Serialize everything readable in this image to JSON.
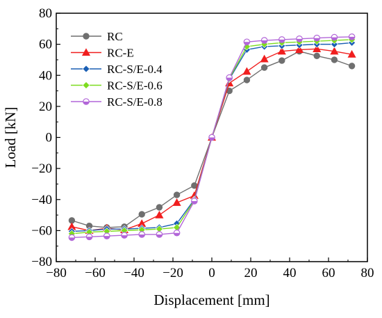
{
  "chart_data": {
    "type": "line",
    "xlabel": "Displacement [mm]",
    "ylabel": "Load [kN]",
    "xlim": [
      -80,
      80
    ],
    "ylim": [
      -80,
      80
    ],
    "xticks": [
      -80,
      -60,
      -40,
      -20,
      0,
      20,
      40,
      60,
      80
    ],
    "yticks": [
      -80,
      -60,
      -40,
      -20,
      0,
      20,
      40,
      60,
      80
    ],
    "xtick_labels": [
      "−80",
      "−60",
      "−40",
      "−20",
      "0",
      "20",
      "40",
      "60",
      "80"
    ],
    "ytick_labels": [
      "−80",
      "−60",
      "−40",
      "−20",
      "0",
      "20",
      "40",
      "60",
      "80"
    ],
    "grid": false,
    "legend_position": "top-left",
    "series": [
      {
        "name": "RC",
        "color": "#6f6f6f",
        "marker": "circle",
        "x": [
          -72,
          -63,
          -54,
          -45,
          -36,
          -27,
          -18,
          -9,
          0,
          9,
          18,
          27,
          36,
          45,
          54,
          63,
          72
        ],
        "y": [
          -53.5,
          -57,
          -58,
          -57.5,
          -49.5,
          -45,
          -37,
          -31,
          0,
          30,
          37,
          45,
          49.5,
          55.5,
          52.5,
          50,
          46
        ]
      },
      {
        "name": "RC-E",
        "color": "#f01e1e",
        "marker": "triangle",
        "x": [
          -72,
          -63,
          -54,
          -45,
          -36,
          -27,
          -18,
          -9,
          0,
          9,
          18,
          27,
          36,
          45,
          54,
          63,
          72
        ],
        "y": [
          -57.5,
          -60,
          -58.5,
          -59.5,
          -55.5,
          -50,
          -42,
          -37.5,
          0,
          35,
          42.5,
          50.5,
          55.5,
          56.5,
          57,
          55.5,
          53.5
        ]
      },
      {
        "name": "RC-S/E-0.4",
        "color": "#1a5fb4",
        "marker": "diamond",
        "x": [
          -72,
          -63,
          -54,
          -45,
          -36,
          -27,
          -18,
          -9,
          0,
          9,
          18,
          27,
          36,
          45,
          54,
          63,
          72
        ],
        "y": [
          -60.5,
          -60,
          -59,
          -59,
          -58.5,
          -58,
          -55.5,
          -40,
          0,
          37.5,
          56.5,
          58.5,
          59,
          59.5,
          60,
          60,
          61
        ]
      },
      {
        "name": "RC-S/E-0.6",
        "color": "#7ddc1f",
        "marker": "diamond",
        "x": [
          -72,
          -63,
          -54,
          -45,
          -36,
          -27,
          -18,
          -9,
          0,
          9,
          18,
          27,
          36,
          45,
          54,
          63,
          72
        ],
        "y": [
          -62,
          -61,
          -60.5,
          -60,
          -59.5,
          -59,
          -58,
          -40.5,
          0,
          38,
          58.5,
          60,
          61,
          61.5,
          62,
          62.5,
          63
        ]
      },
      {
        "name": "RC-S/E-0.8",
        "color": "#b266d8",
        "marker": "circle-half",
        "x": [
          -72,
          -63,
          -54,
          -45,
          -36,
          -27,
          -18,
          -9,
          0,
          9,
          18,
          27,
          36,
          45,
          54,
          63,
          72
        ],
        "y": [
          -64.5,
          -64,
          -63.5,
          -63,
          -62.5,
          -62.5,
          -61.5,
          -41,
          0,
          38.5,
          61.5,
          62.5,
          63,
          63.5,
          64,
          64.5,
          64.8
        ]
      }
    ]
  }
}
